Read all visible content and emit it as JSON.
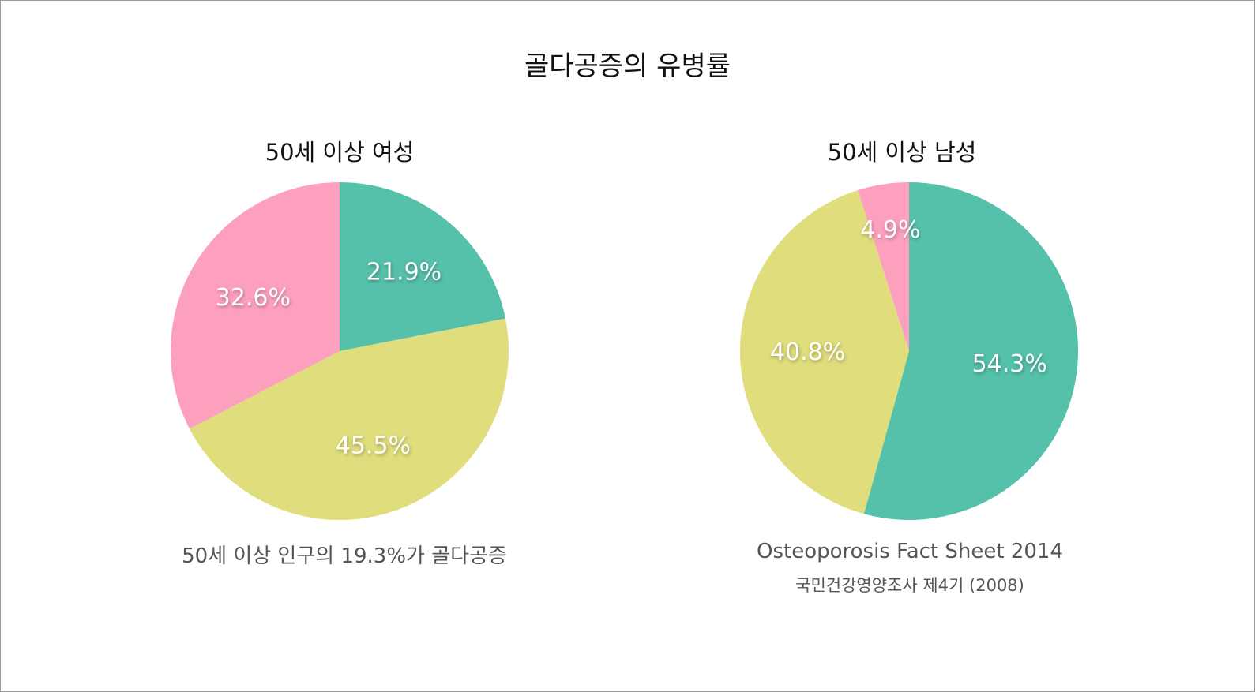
{
  "title": "골다공증의 유병률",
  "colors": {
    "green": "#56c1aa",
    "yellow": "#dfdd7c",
    "pink": "#fda0bd"
  },
  "chart_data": [
    {
      "type": "pie",
      "title": "50세 이상 여성",
      "slices": [
        {
          "label": "21.9%",
          "value": 21.9,
          "color": "#56c1aa"
        },
        {
          "label": "45.5%",
          "value": 45.5,
          "color": "#dfdd7c"
        },
        {
          "label": "32.6%",
          "value": 32.6,
          "color": "#fda0bd"
        }
      ],
      "caption": "50세 이상 인구의 19.3%가 골다공증"
    },
    {
      "type": "pie",
      "title": "50세 이상 남성",
      "slices": [
        {
          "label": "54.3%",
          "value": 54.3,
          "color": "#56c1aa"
        },
        {
          "label": "40.8%",
          "value": 40.8,
          "color": "#dfdd7c"
        },
        {
          "label": "4.9%",
          "value": 4.9,
          "color": "#fda0bd"
        }
      ],
      "caption": "Osteoporosis Fact Sheet 2014",
      "source": "국민건강영양조사 제4기 (2008)"
    }
  ]
}
